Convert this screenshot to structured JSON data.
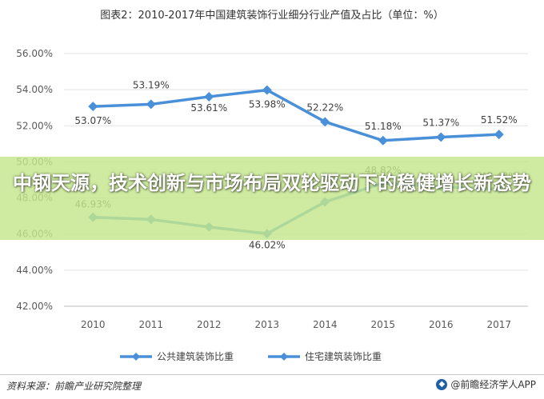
{
  "chart_data": {
    "type": "line",
    "title": "图表2：2010-2017年中国建筑装饰行业细分行业产值及占比（单位：%）",
    "categories": [
      "2010",
      "2011",
      "2012",
      "2013",
      "2014",
      "2015",
      "2016",
      "2017"
    ],
    "y_ticks": [
      "56.00%",
      "54.00%",
      "52.00%",
      "50.00%",
      "48.00%",
      "46.00%",
      "44.00%",
      "42.00%"
    ],
    "ylim": [
      42,
      56
    ],
    "series": [
      {
        "name": "公共建筑装饰比重",
        "values": [
          53.07,
          53.19,
          53.61,
          53.98,
          52.22,
          51.18,
          51.37,
          51.52
        ],
        "labels": [
          "53.07%",
          "53.19%",
          "53.61%",
          "53.98%",
          "52.22%",
          "51.18%",
          "51.37%",
          "51.52%"
        ],
        "color": "#4a90d9"
      },
      {
        "name": "住宅建筑装饰比重",
        "values": [
          46.93,
          46.81,
          46.39,
          46.02,
          47.78,
          48.82,
          48.63,
          48.48
        ],
        "labels": [
          "46.93%",
          "",
          "",
          "46.02%",
          "",
          "48.82%",
          "",
          "48.48%"
        ],
        "color": "#4a90d9"
      }
    ],
    "grid": "horizontal",
    "legend_position": "bottom"
  },
  "overlay": {
    "text": "中钢天源，技术创新与市场布局双轮驱动下的稳健增长新态势"
  },
  "footer": {
    "source": "资料来源：前瞻产业研究院整理",
    "brand": "@前瞻经济学人APP"
  }
}
